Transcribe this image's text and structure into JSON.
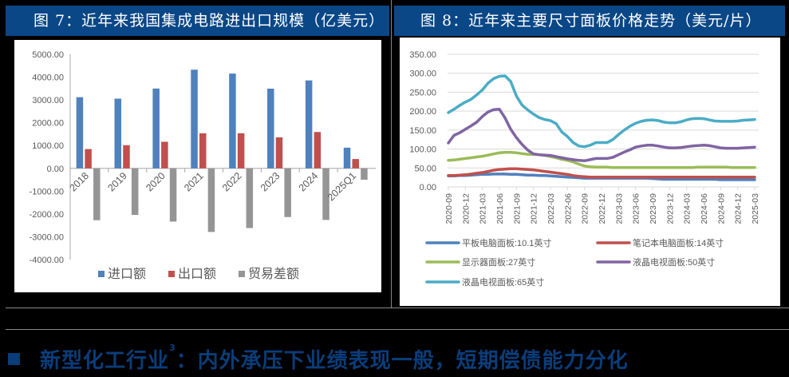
{
  "figures": {
    "left": {
      "title": "图 7：近年来我国集成电路进出口规模（亿美元）"
    },
    "right": {
      "title": "图 8：近年来主要尺寸面板价格走势（美元/片）"
    }
  },
  "section_heading": {
    "bullet_icon": "square-bullet",
    "text_before": "新型化工行业",
    "footnote": "3",
    "text_after": "：内外承压下业绩表现一般，短期偿债能力分化"
  },
  "colors": {
    "header_bg": "#0a4787",
    "heading_text": "#0a3d7a",
    "import": "#4f81bd",
    "export": "#c0504d",
    "balance": "#959595",
    "tablet": "#4f81bd",
    "notebook": "#c0504d",
    "monitor": "#9bbb59",
    "tv50": "#8064a2",
    "tv65": "#4bacc6"
  },
  "chart_data": [
    {
      "type": "bar",
      "title": "近年来我国集成电路进出口规模（亿美元）",
      "categories": [
        "2018",
        "2019",
        "2020",
        "2021",
        "2022",
        "2023",
        "2024",
        "2025Q1"
      ],
      "series": [
        {
          "name": "进口额",
          "values": [
            3121,
            3056,
            3500,
            4326,
            4156,
            3494,
            3856,
            906
          ]
        },
        {
          "name": "出口额",
          "values": [
            846,
            1016,
            1166,
            1538,
            1539,
            1360,
            1595,
            409
          ]
        },
        {
          "name": "贸易差额",
          "values": [
            -2275,
            -2040,
            -2334,
            -2788,
            -2617,
            -2134,
            -2261,
            -497
          ]
        }
      ],
      "yticks": [
        "5000.00",
        "4000.00",
        "3000.00",
        "2000.00",
        "1000.00",
        "0.00",
        "-1000.00",
        "-2000.00",
        "-3000.00",
        "-4000.00"
      ],
      "ylim": [
        -4000,
        5000
      ],
      "xlabel": "",
      "ylabel": "",
      "grid": false,
      "legend_position": "bottom"
    },
    {
      "type": "line",
      "title": "近年来主要尺寸面板价格走势（美元/片）",
      "x": [
        "2020-09",
        "2020-10",
        "2020-11",
        "2020-12",
        "2021-01",
        "2021-02",
        "2021-03",
        "2021-04",
        "2021-05",
        "2021-06",
        "2021-07",
        "2021-08",
        "2021-09",
        "2021-10",
        "2021-11",
        "2021-12",
        "2022-01",
        "2022-02",
        "2022-03",
        "2022-04",
        "2022-05",
        "2022-06",
        "2022-07",
        "2022-08",
        "2022-09",
        "2022-10",
        "2022-11",
        "2022-12",
        "2023-01",
        "2023-02",
        "2023-03",
        "2023-04",
        "2023-05",
        "2023-06",
        "2023-07",
        "2023-08",
        "2023-09",
        "2023-10",
        "2023-11",
        "2023-12",
        "2024-01",
        "2024-02",
        "2024-03",
        "2024-04",
        "2024-05",
        "2024-06",
        "2024-07",
        "2024-08",
        "2024-09",
        "2024-10",
        "2024-11",
        "2024-12",
        "2025-01",
        "2025-02",
        "2025-03"
      ],
      "xticks": [
        "2020-09",
        "2020-12",
        "2021-03",
        "2021-06",
        "2021-09",
        "2021-12",
        "2022-03",
        "2022-06",
        "2022-09",
        "2022-12",
        "2023-03",
        "2023-06",
        "2023-09",
        "2023-12",
        "2024-03",
        "2024-06",
        "2024-09",
        "2024-12",
        "2025-03"
      ],
      "series": [
        {
          "name": "平板电脑面板:10.1英寸",
          "values": [
            29,
            29,
            30,
            30,
            31,
            32,
            33,
            33,
            34,
            34,
            34,
            33,
            33,
            32,
            31,
            31,
            30,
            30,
            29,
            28,
            27,
            26,
            25,
            24,
            23,
            23,
            23,
            23,
            23,
            23,
            23,
            23,
            23,
            23,
            23,
            23,
            22,
            21,
            20,
            20,
            20,
            20,
            20,
            20,
            20,
            20,
            20,
            20,
            19,
            19,
            19,
            19,
            19,
            19,
            19
          ]
        },
        {
          "name": "笔记本电脑面板:14英寸",
          "values": [
            30,
            30,
            31,
            32,
            34,
            36,
            38,
            41,
            44,
            46,
            47,
            48,
            48,
            47,
            46,
            45,
            43,
            41,
            39,
            37,
            35,
            33,
            30,
            28,
            27,
            26,
            26,
            26,
            26,
            26,
            26,
            26,
            26,
            26,
            26,
            26,
            26,
            26,
            26,
            26,
            26,
            26,
            26,
            26,
            26,
            26,
            26,
            26,
            26,
            26,
            26,
            26,
            26,
            26,
            26
          ]
        },
        {
          "name": "显示器面板:27英寸",
          "values": [
            70,
            71,
            73,
            75,
            77,
            79,
            81,
            84,
            87,
            90,
            91,
            91,
            90,
            88,
            86,
            86,
            85,
            83,
            80,
            77,
            73,
            70,
            66,
            60,
            55,
            53,
            52,
            52,
            52,
            51,
            51,
            51,
            51,
            51,
            51,
            51,
            51,
            51,
            51,
            51,
            51,
            51,
            51,
            51,
            52,
            52,
            52,
            52,
            52,
            52,
            51,
            51,
            51,
            51,
            51
          ]
        },
        {
          "name": "液晶电视面板:50英寸",
          "values": [
            116,
            136,
            143,
            152,
            161,
            171,
            186,
            198,
            204,
            205,
            182,
            152,
            130,
            112,
            97,
            87,
            85,
            84,
            83,
            80,
            77,
            74,
            72,
            70,
            69,
            72,
            75,
            75,
            75,
            78,
            85,
            92,
            98,
            105,
            108,
            110,
            110,
            108,
            105,
            103,
            103,
            104,
            106,
            108,
            109,
            110,
            109,
            106,
            103,
            102,
            102,
            102,
            103,
            104,
            105
          ]
        },
        {
          "name": "液晶电视面板:65英寸",
          "values": [
            196,
            205,
            215,
            224,
            231,
            243,
            256,
            274,
            286,
            292,
            293,
            278,
            240,
            216,
            203,
            192,
            183,
            178,
            175,
            167,
            145,
            133,
            117,
            108,
            106,
            110,
            117,
            117,
            117,
            125,
            138,
            150,
            160,
            168,
            173,
            176,
            177,
            175,
            171,
            169,
            169,
            172,
            177,
            180,
            181,
            180,
            177,
            174,
            173,
            173,
            173,
            174,
            176,
            177,
            178
          ]
        }
      ],
      "yticks": [
        "350.00",
        "300.00",
        "250.00",
        "200.00",
        "150.00",
        "100.00",
        "50.00",
        "0.00"
      ],
      "ylim": [
        0,
        350
      ],
      "xlabel": "",
      "ylabel": "",
      "grid": true,
      "legend_position": "bottom"
    }
  ]
}
